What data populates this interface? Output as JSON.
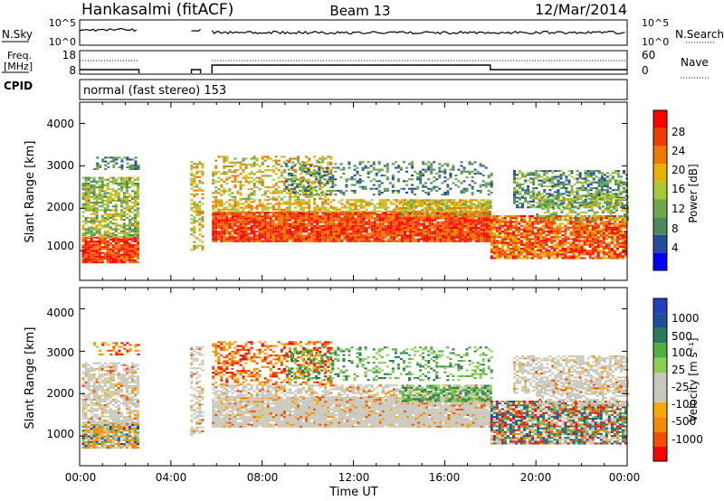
{
  "header": {
    "station": "Hankasalmi (fitACF)",
    "beam": "Beam 13",
    "date": "12/Mar/2014"
  },
  "strips": {
    "nsky_label": "N.Sky",
    "nsky_ticks": [
      "10^5",
      "10^0"
    ],
    "nsearch_label": "N.Search",
    "nsearch_ticks": [
      "10^5",
      "10^0"
    ],
    "freq_label_1": "Freq.",
    "freq_label_2": "[MHz]",
    "freq_ticks": [
      "18",
      "8"
    ],
    "nave_label": "Nave",
    "nave_ticks": [
      "60",
      "0"
    ],
    "cpid_label": "CPID",
    "cpid_value": "normal (fast stereo) 153"
  },
  "colors": {
    "power_scale": [
      "#0000ff",
      "#234ea0",
      "#4a8a5c",
      "#6fa84a",
      "#a8c83a",
      "#e8b000",
      "#f07800",
      "#f03c00",
      "#ff0000"
    ],
    "velocity_scale": [
      "#ff0000",
      "#f04e00",
      "#f58a00",
      "#f5aa00",
      "#c8c8bc",
      "#c8c8bc",
      "#8cd050",
      "#50b040",
      "#2c7a58",
      "#1e4f9a",
      "#2040c0"
    ],
    "ground_scatter": "#c8c8bc"
  },
  "chart_data": [
    {
      "type": "heatmap",
      "panel": "power",
      "ylabel": "Slant Range [km]",
      "y_ticks": [
        "4000",
        "3000",
        "2000",
        "1000"
      ],
      "ylim": [
        300,
        4500
      ],
      "xlim_hours": [
        0,
        24
      ],
      "x_ticks": [
        "00:00",
        "04:00",
        "08:00",
        "12:00",
        "16:00",
        "20:00",
        "00:00"
      ],
      "colorbar_label": "Power [dB]",
      "colorbar_ticks": [
        "28",
        "24",
        "20",
        "16",
        "12",
        "8",
        "4"
      ],
      "data_gaps_hours": [
        [
          2.6,
          4.85
        ],
        [
          5.35,
          5.75
        ]
      ]
    },
    {
      "type": "heatmap",
      "panel": "velocity",
      "ylabel": "Slant Range [km]",
      "y_ticks": [
        "4000",
        "3000",
        "2000",
        "1000"
      ],
      "ylim": [
        300,
        4500
      ],
      "xlim_hours": [
        0,
        24
      ],
      "x_ticks": [
        "00:00",
        "04:00",
        "08:00",
        "12:00",
        "16:00",
        "20:00",
        "00:00"
      ],
      "xlabel": "Time UT",
      "colorbar_label": "Velocity [m s⁻¹]",
      "colorbar_ticks": [
        "1000",
        "500",
        "100",
        "25",
        "-25",
        "-100",
        "-500",
        "-1000"
      ],
      "data_gaps_hours": [
        [
          2.6,
          4.85
        ],
        [
          5.35,
          5.75
        ]
      ]
    }
  ]
}
